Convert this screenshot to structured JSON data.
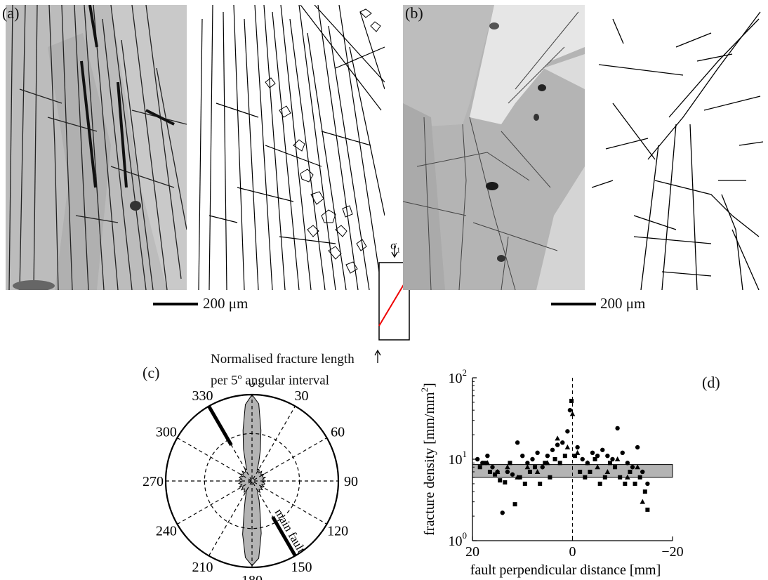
{
  "panels": {
    "a": {
      "label": "(a)",
      "scale": "200 μm"
    },
    "b": {
      "label": "(b)",
      "scale": "200 μm"
    },
    "c": {
      "label": "(c)",
      "title_line1": "Normalised fracture length",
      "title_line2_pre": "per 5",
      "title_line2_sup": "o",
      "title_line2_post": " angular interval",
      "angle_labels": [
        "0",
        "30",
        "60",
        "90",
        "120",
        "150",
        "180",
        "210",
        "240",
        "270",
        "300",
        "330"
      ],
      "fault_label": "main fault"
    },
    "d": {
      "label": "(d)"
    }
  },
  "stress": {
    "symbol": "σ",
    "subscript": "1"
  },
  "chart_data": {
    "type": "scatter",
    "xlabel": "fault perpendicular distance [mm]",
    "ylabel": "fracture density [mm/mm²]",
    "ylabel_pre": "fracture density [mm/mm",
    "ylabel_sup": "2",
    "ylabel_post": "]",
    "xlim": [
      20,
      -20
    ],
    "ylim": [
      1,
      100
    ],
    "yscale": "log",
    "x_ticks": [
      "20",
      "0",
      "−20"
    ],
    "y_ticks": [
      {
        "base": "10",
        "exp": "0"
      },
      {
        "base": "10",
        "exp": "1"
      },
      {
        "base": "10",
        "exp": "2"
      }
    ],
    "band": [
      6,
      8.6
    ],
    "series": [
      {
        "marker": "circle",
        "x": [
          19,
          18,
          17,
          16,
          15,
          14,
          13,
          12,
          11,
          10,
          9,
          8,
          7,
          6,
          5,
          4,
          3,
          2,
          1,
          0.5,
          -1,
          -2,
          -3,
          -4,
          -5,
          -6,
          -7,
          -8,
          -9,
          -10,
          -11,
          -12,
          -13,
          -14,
          -15
        ],
        "y": [
          10,
          9,
          11,
          8,
          7,
          2.2,
          7,
          6.5,
          16,
          11,
          9,
          10,
          12,
          8,
          11,
          13,
          15,
          16,
          22,
          40,
          14,
          10,
          9,
          12,
          11,
          13,
          11,
          10,
          24,
          12,
          9,
          8,
          14,
          7,
          5
        ]
      },
      {
        "marker": "square",
        "x": [
          18.5,
          17.5,
          16.5,
          15.5,
          14.5,
          13.5,
          12.5,
          11.5,
          10.5,
          9.5,
          8.5,
          7.5,
          6.5,
          5.5,
          4.5,
          3.5,
          2.5,
          1.5,
          0.2,
          -0.5,
          -1.5,
          -2.5,
          -3.5,
          -4.5,
          -5.5,
          -6.5,
          -7.5,
          -8.5,
          -9.5,
          -10.5,
          -11.5,
          -12.5,
          -13.5,
          -14.5,
          -15
        ],
        "y": [
          8,
          9,
          7,
          6.5,
          5.5,
          5.2,
          9,
          2.8,
          6,
          5,
          7,
          8,
          5,
          9,
          6,
          10,
          9,
          11,
          52,
          11,
          7,
          6,
          7,
          10,
          5,
          6,
          9,
          8,
          6,
          5,
          7,
          5,
          6,
          4,
          2.4
        ]
      },
      {
        "marker": "triangle",
        "x": [
          17,
          15,
          13,
          11,
          9,
          7,
          5,
          3,
          1,
          0,
          -1,
          -3,
          -5,
          -7,
          -9,
          -11,
          -13,
          -14
        ],
        "y": [
          9,
          7,
          8,
          6,
          8,
          7,
          9,
          18,
          14,
          36,
          12,
          9,
          8,
          7,
          10,
          6,
          8,
          3
        ]
      }
    ]
  }
}
